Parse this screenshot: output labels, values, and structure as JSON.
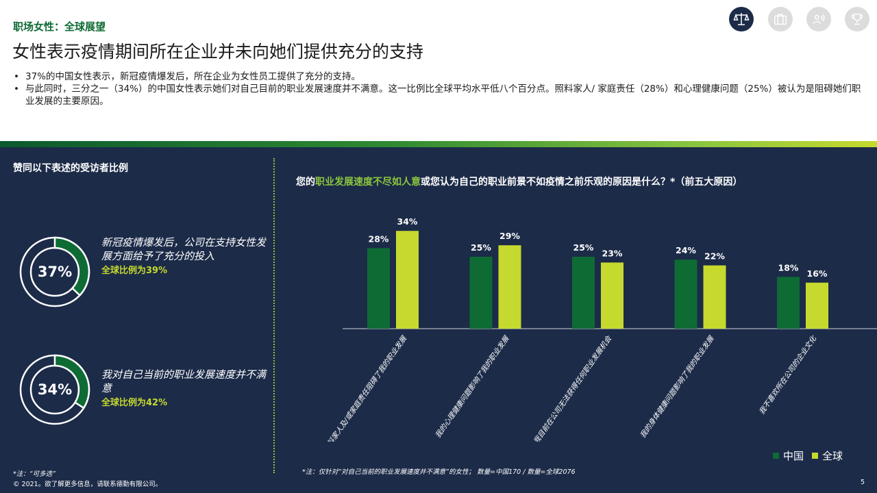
{
  "header": {
    "eyebrow": "职场女性：全球展望",
    "title": "女性表示疫情期间所在企业并未向她们提供充分的支持",
    "bullets": [
      "37%的中国女性表示，新冠疫情爆发后，所在企业为女性员工提供了充分的支持。",
      "与此同时，三分之一（34%）的中国女性表示她们对自己目前的职业发展速度并不满意。这一比例比全球平均水平低八个百分点。照料家人/ 家庭责任（28%）和心理健康问题（25%）被认为是阻碍她们职业发展的主要原因。"
    ]
  },
  "nav_icons": [
    "scale-icon",
    "briefcase-icon",
    "speaking-person-icon",
    "trophy-icon"
  ],
  "colors": {
    "china": "#0e6b34",
    "global": "#c6d92e",
    "panel": "#1c2b48",
    "donut_track": "#ffffff",
    "donut_fill": "#0e6b34"
  },
  "left_panel": {
    "title": "赞同以下表述的受访者比例",
    "stats": [
      {
        "value": 37,
        "label": "37%",
        "text": "新冠疫情爆发后，公司在支持女性发展方面给予了充分的投入",
        "global": "全球比例为39%"
      },
      {
        "value": 34,
        "label": "34%",
        "text": "我对自己当前的职业发展速度并不满意",
        "global": "全球比例为42%"
      }
    ],
    "note": "*注：“可多选”"
  },
  "chart_data": {
    "type": "bar",
    "title_prefix": "您的",
    "title_highlight": "职业发展速度不尽如人意",
    "title_suffix": "或您认为自己的职业前景不如疫情之前乐观的原因是什么？*（前五大原因）",
    "categories": [
      "照料家人及/或家庭责任阻碍了我的职业发展",
      "我的心理健康问题影响了我的职业发展",
      "我目前在公司无法获得任何职业发展机会",
      "我的身体健康问题影响了我的职业发展",
      "我不喜欢所在公司的企业文化"
    ],
    "series": [
      {
        "name": "中国",
        "values": [
          28,
          25,
          25,
          24,
          18
        ],
        "labels": [
          "28%",
          "25%",
          "25%",
          "24%",
          "18%"
        ]
      },
      {
        "name": "全球",
        "values": [
          34,
          29,
          23,
          22,
          16
        ],
        "labels": [
          "34%",
          "29%",
          "23%",
          "22%",
          "16%"
        ]
      }
    ],
    "ylim": [
      0,
      40
    ],
    "legend_position": "bottom-right",
    "note": "*注：仅针对“对自己当前的职业发展速度并不满意”的女性； 数量=中国170 / 数量=全球2076"
  },
  "footer": {
    "copyright": "© 2021。欲了解更多信息，请联系德勤有限公司。",
    "page": "5"
  }
}
